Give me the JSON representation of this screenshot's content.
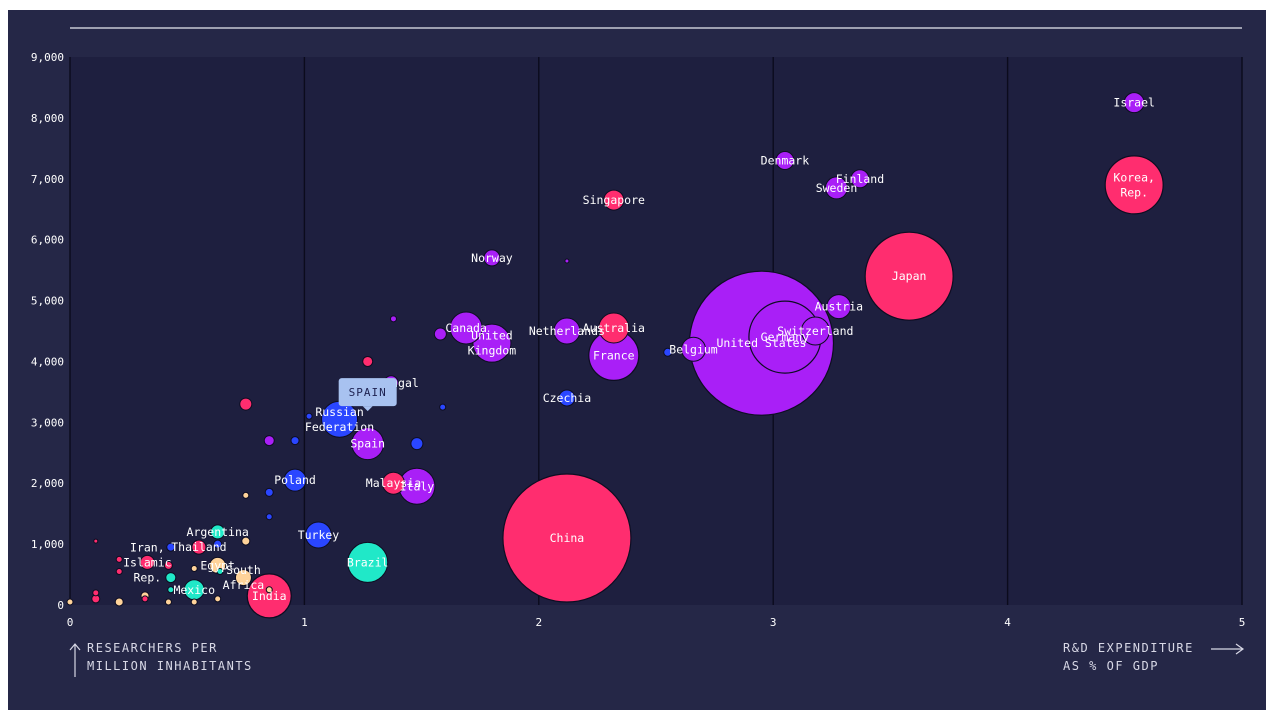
{
  "chart_data": {
    "type": "scatter",
    "title": "",
    "xlabel": [
      "R&D EXPENDITURE",
      "AS % OF GDP"
    ],
    "ylabel": [
      "RESEARCHERS PER",
      "MILLION INHABITANTS"
    ],
    "xlim": [
      0,
      5
    ],
    "ylim": [
      0,
      9000
    ],
    "xticks": [
      "0",
      "1",
      "2",
      "3",
      "4",
      "5"
    ],
    "yticks": [
      "0",
      "1,000",
      "2,000",
      "3,000",
      "4,000",
      "5,000",
      "6,000",
      "7,000",
      "8,000",
      "9,000"
    ],
    "colors": {
      "background": "#252747",
      "plot": "#1e1f3f",
      "pink": "#ff2d6f",
      "purple": "#a91ff7",
      "blue": "#2a46ff",
      "teal": "#20e8c8",
      "peach": "#ffd39a",
      "tooltip": "#a8c2f0"
    },
    "tooltip": {
      "label": "SPAIN",
      "x": 1.27,
      "y": 3300
    },
    "points": [
      {
        "name": "Israel",
        "label": [
          "Israel"
        ],
        "x": 4.54,
        "y": 8250,
        "r": 10,
        "c": "purple"
      },
      {
        "name": "Korea, Rep.",
        "label": [
          "Korea,",
          "Rep."
        ],
        "x": 4.54,
        "y": 6900,
        "r": 29,
        "c": "pink"
      },
      {
        "name": "Denmark",
        "label": [
          "Denmark"
        ],
        "x": 3.05,
        "y": 7300,
        "r": 9,
        "c": "purple"
      },
      {
        "name": "Finland",
        "label": [
          "Finland"
        ],
        "x": 3.37,
        "y": 7000,
        "r": 9,
        "c": "purple"
      },
      {
        "name": "Sweden",
        "label": [
          "Sweden"
        ],
        "x": 3.27,
        "y": 6850,
        "r": 11,
        "c": "purple"
      },
      {
        "name": "Singapore",
        "label": [
          "Singapore"
        ],
        "x": 2.32,
        "y": 6650,
        "r": 10,
        "c": "pink"
      },
      {
        "name": "Japan",
        "label": [
          "Japan"
        ],
        "x": 3.58,
        "y": 5400,
        "r": 44,
        "c": "pink"
      },
      {
        "name": "Norway",
        "label": [
          "Norway"
        ],
        "x": 1.8,
        "y": 5700,
        "r": 8,
        "c": "purple"
      },
      {
        "name": "Austria",
        "label": [
          "Austria"
        ],
        "x": 3.28,
        "y": 4900,
        "r": 12,
        "c": "purple"
      },
      {
        "name": "United States",
        "label": [
          "United States"
        ],
        "x": 2.95,
        "y": 4300,
        "r": 72,
        "c": "purple"
      },
      {
        "name": "Germany",
        "label": [
          "Germany"
        ],
        "x": 3.05,
        "y": 4400,
        "r": 36,
        "c": "purple"
      },
      {
        "name": "Switzerland",
        "label": [
          "Switzerland"
        ],
        "x": 3.18,
        "y": 4500,
        "r": 14,
        "c": "purple"
      },
      {
        "name": "Netherlands",
        "label": [
          "Netherlands"
        ],
        "x": 2.12,
        "y": 4500,
        "r": 13,
        "c": "purple"
      },
      {
        "name": "Australia",
        "label": [
          "Australia"
        ],
        "x": 2.32,
        "y": 4550,
        "r": 15,
        "c": "pink"
      },
      {
        "name": "France",
        "label": [
          "France"
        ],
        "x": 2.32,
        "y": 4100,
        "r": 25,
        "c": "purple"
      },
      {
        "name": "Belgium",
        "label": [
          "Belgium"
        ],
        "x": 2.66,
        "y": 4200,
        "r": 12,
        "c": "purple"
      },
      {
        "name": "Canada",
        "label": [
          "Canada"
        ],
        "x": 1.69,
        "y": 4550,
        "r": 16,
        "c": "purple"
      },
      {
        "name": "United Kingdom",
        "label": [
          "United",
          "Kingdom"
        ],
        "x": 1.8,
        "y": 4300,
        "r": 19,
        "c": "purple"
      },
      {
        "name": "Czechia",
        "label": [
          "Czechia"
        ],
        "x": 2.12,
        "y": 3400,
        "r": 8,
        "c": "blue"
      },
      {
        "name": "Portugal",
        "label": [
          "Portugal"
        ],
        "x": 1.37,
        "y": 3650,
        "r": 7,
        "c": "purple"
      },
      {
        "name": "Russian Federation",
        "label": [
          "Russian",
          "Federation"
        ],
        "x": 1.15,
        "y": 3050,
        "r": 18,
        "c": "blue"
      },
      {
        "name": "Spain",
        "label": [
          "Spain"
        ],
        "x": 1.27,
        "y": 2650,
        "r": 16,
        "c": "purple"
      },
      {
        "name": "China",
        "label": [
          "China"
        ],
        "x": 2.12,
        "y": 1100,
        "r": 64,
        "c": "pink"
      },
      {
        "name": "Italy",
        "label": [
          "Italy"
        ],
        "x": 1.48,
        "y": 1950,
        "r": 18,
        "c": "purple"
      },
      {
        "name": "Malaysia",
        "label": [
          "Malaysia"
        ],
        "x": 1.38,
        "y": 2000,
        "r": 11,
        "c": "pink"
      },
      {
        "name": "Poland",
        "label": [
          "Poland"
        ],
        "x": 0.96,
        "y": 2050,
        "r": 11,
        "c": "blue"
      },
      {
        "name": "Turkey",
        "label": [
          "Turkey"
        ],
        "x": 1.06,
        "y": 1150,
        "r": 13,
        "c": "blue"
      },
      {
        "name": "Brazil",
        "label": [
          "Brazil"
        ],
        "x": 1.27,
        "y": 700,
        "r": 20,
        "c": "teal"
      },
      {
        "name": "India",
        "label": [
          "India"
        ],
        "x": 0.85,
        "y": 150,
        "r": 22,
        "c": "pink"
      },
      {
        "name": "Argentina",
        "label": [
          "Argentina"
        ],
        "x": 0.63,
        "y": 1200,
        "r": 7,
        "c": "teal"
      },
      {
        "name": "Thailand",
        "label": [
          "Thailand"
        ],
        "x": 0.55,
        "y": 950,
        "r": 7,
        "c": "pink"
      },
      {
        "name": "Iran, Islamic Rep.",
        "label": [
          "Iran,",
          "Islamic",
          "Rep."
        ],
        "x": 0.33,
        "y": 700,
        "r": 7,
        "c": "pink"
      },
      {
        "name": "Egypt",
        "label": [
          "Egypt"
        ],
        "x": 0.63,
        "y": 650,
        "r": 8,
        "c": "peach"
      },
      {
        "name": "South Africa",
        "label": [
          "South",
          "Africa"
        ],
        "x": 0.74,
        "y": 450,
        "r": 8,
        "c": "peach"
      },
      {
        "name": "Mexico",
        "label": [
          "Mexico"
        ],
        "x": 0.53,
        "y": 250,
        "r": 10,
        "c": "teal"
      },
      {
        "name": "",
        "label": [],
        "x": 0.75,
        "y": 3300,
        "r": 6,
        "c": "pink"
      },
      {
        "name": "",
        "label": [],
        "x": 0.85,
        "y": 2700,
        "r": 5,
        "c": "purple"
      },
      {
        "name": "",
        "label": [],
        "x": 0.96,
        "y": 2700,
        "r": 4,
        "c": "blue"
      },
      {
        "name": "",
        "label": [],
        "x": 1.02,
        "y": 3100,
        "r": 3,
        "c": "blue"
      },
      {
        "name": "",
        "label": [],
        "x": 1.27,
        "y": 4000,
        "r": 5,
        "c": "pink"
      },
      {
        "name": "",
        "label": [],
        "x": 1.38,
        "y": 4700,
        "r": 3,
        "c": "purple"
      },
      {
        "name": "",
        "label": [],
        "x": 1.58,
        "y": 4450,
        "r": 6,
        "c": "purple"
      },
      {
        "name": "",
        "label": [],
        "x": 1.59,
        "y": 3250,
        "r": 3,
        "c": "blue"
      },
      {
        "name": "",
        "label": [],
        "x": 1.48,
        "y": 2650,
        "r": 6,
        "c": "blue"
      },
      {
        "name": "",
        "label": [],
        "x": 2.12,
        "y": 5650,
        "r": 2,
        "c": "purple"
      },
      {
        "name": "",
        "label": [],
        "x": 2.55,
        "y": 4150,
        "r": 4,
        "c": "blue"
      },
      {
        "name": "",
        "label": [],
        "x": 0.75,
        "y": 1800,
        "r": 3,
        "c": "peach"
      },
      {
        "name": "",
        "label": [],
        "x": 0.85,
        "y": 1850,
        "r": 4,
        "c": "blue"
      },
      {
        "name": "",
        "label": [],
        "x": 0.85,
        "y": 1450,
        "r": 3,
        "c": "blue"
      },
      {
        "name": "",
        "label": [],
        "x": 0.75,
        "y": 1050,
        "r": 4,
        "c": "peach"
      },
      {
        "name": "",
        "label": [],
        "x": 0.63,
        "y": 1000,
        "r": 4,
        "c": "blue"
      },
      {
        "name": "",
        "label": [],
        "x": 0.43,
        "y": 950,
        "r": 4,
        "c": "blue"
      },
      {
        "name": "",
        "label": [],
        "x": 0.11,
        "y": 1050,
        "r": 2,
        "c": "pink"
      },
      {
        "name": "",
        "label": [],
        "x": 0.21,
        "y": 750,
        "r": 3,
        "c": "pink"
      },
      {
        "name": "",
        "label": [],
        "x": 0.21,
        "y": 550,
        "r": 3,
        "c": "pink"
      },
      {
        "name": "",
        "label": [],
        "x": 0.42,
        "y": 650,
        "r": 4,
        "c": "pink"
      },
      {
        "name": "",
        "label": [],
        "x": 0.43,
        "y": 450,
        "r": 5,
        "c": "teal"
      },
      {
        "name": "",
        "label": [],
        "x": 0.53,
        "y": 600,
        "r": 3,
        "c": "peach"
      },
      {
        "name": "",
        "label": [],
        "x": 0.53,
        "y": 50,
        "r": 3,
        "c": "peach"
      },
      {
        "name": "",
        "label": [],
        "x": 0.32,
        "y": 150,
        "r": 4,
        "c": "peach"
      },
      {
        "name": "",
        "label": [],
        "x": 0.32,
        "y": 100,
        "r": 3,
        "c": "pink"
      },
      {
        "name": "",
        "label": [],
        "x": 0.21,
        "y": 50,
        "r": 4,
        "c": "peach"
      },
      {
        "name": "",
        "label": [],
        "x": 0.11,
        "y": 100,
        "r": 4,
        "c": "pink"
      },
      {
        "name": "",
        "label": [],
        "x": 0.11,
        "y": 200,
        "r": 3,
        "c": "pink"
      },
      {
        "name": "",
        "label": [],
        "x": 0.0,
        "y": 50,
        "r": 3,
        "c": "peach"
      },
      {
        "name": "",
        "label": [],
        "x": 0.43,
        "y": 250,
        "r": 3,
        "c": "teal"
      },
      {
        "name": "",
        "label": [],
        "x": 0.42,
        "y": 50,
        "r": 3,
        "c": "peach"
      },
      {
        "name": "",
        "label": [],
        "x": 0.63,
        "y": 100,
        "r": 3,
        "c": "peach"
      },
      {
        "name": "",
        "label": [],
        "x": 0.85,
        "y": 250,
        "r": 3,
        "c": "peach"
      },
      {
        "name": "",
        "label": [],
        "x": 0.64,
        "y": 550,
        "r": 3,
        "c": "teal"
      }
    ]
  }
}
